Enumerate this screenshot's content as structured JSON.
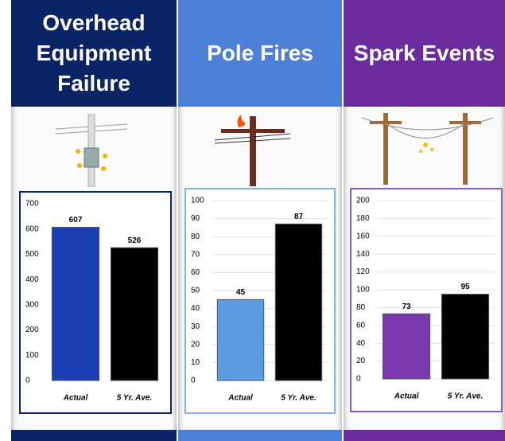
{
  "chart_data": [
    {
      "type": "bar",
      "title": "Overhead Equipment Failure",
      "header_color": "#0b2466",
      "categories": [
        "Actual",
        "5 Yr. Ave."
      ],
      "values": [
        607,
        526
      ],
      "colors": [
        "#1b3fb3",
        "#000000"
      ],
      "ylim": [
        0,
        700
      ],
      "yticks": [
        0,
        100,
        200,
        300,
        400,
        500,
        600,
        700
      ],
      "grid": false,
      "border_color": "#0b2466"
    },
    {
      "type": "bar",
      "title": "Pole Fires",
      "header_color": "#4b80d6",
      "categories": [
        "Actual",
        "5 Yr. Ave."
      ],
      "values": [
        45,
        87
      ],
      "colors": [
        "#5b9be0",
        "#000000"
      ],
      "ylim": [
        0,
        100
      ],
      "yticks": [
        0,
        10,
        20,
        30,
        40,
        50,
        60,
        70,
        80,
        90,
        100
      ],
      "grid": true,
      "border_color": "#7fb2e0"
    },
    {
      "type": "bar",
      "title": "Spark Events",
      "header_color": "#6a2c9c",
      "categories": [
        "Actual",
        "5 Yr. Ave."
      ],
      "values": [
        73,
        95
      ],
      "colors": [
        "#7a3aad",
        "#000000"
      ],
      "ylim": [
        0,
        200
      ],
      "yticks": [
        0,
        20,
        40,
        60,
        80,
        100,
        120,
        140,
        160,
        180,
        200
      ],
      "grid": true,
      "border_color": "#8a5cb8"
    }
  ]
}
